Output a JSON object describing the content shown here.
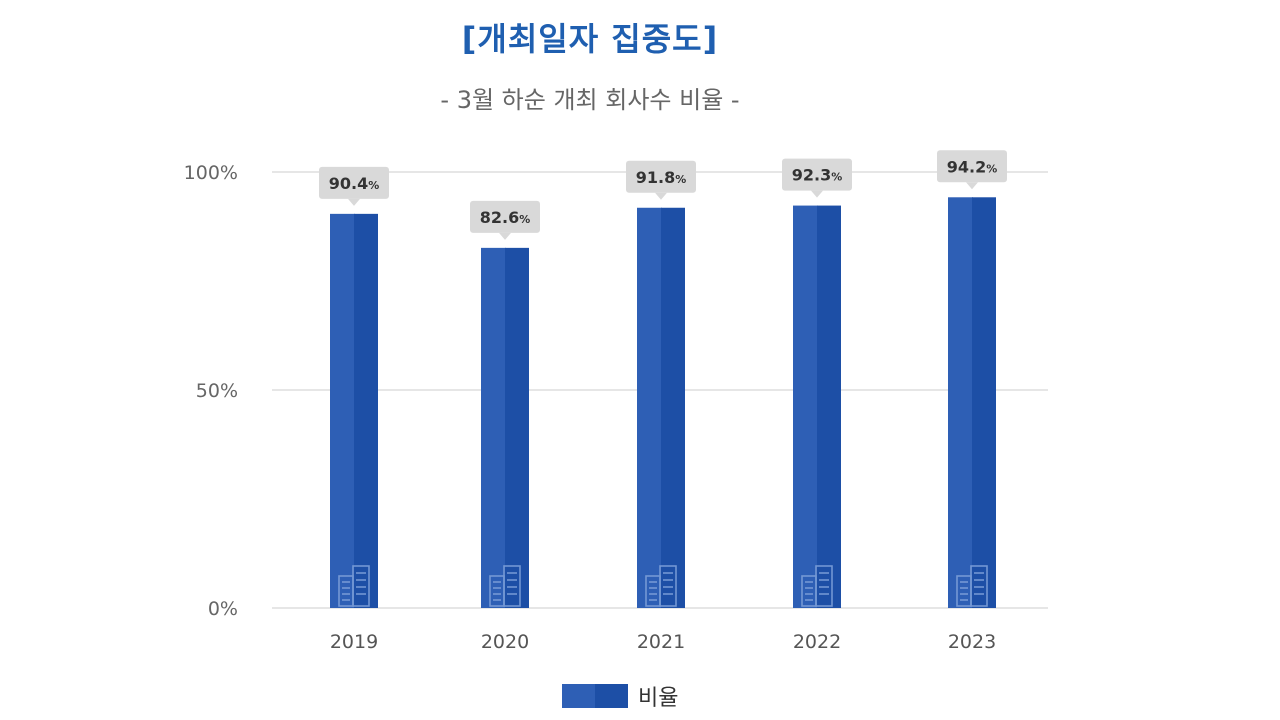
{
  "colors": {
    "title": "#1f5fb0",
    "bar_left": "#2e5fb5",
    "bar_right": "#1d4fa6",
    "grid": "#dddddd",
    "callout": "#d9d9d9"
  },
  "chart_data": {
    "type": "bar",
    "title": "[개최일자 집중도]",
    "subtitle": "- 3월 하순 개최 회사수 비율 -",
    "categories": [
      "2019",
      "2020",
      "2021",
      "2022",
      "2023"
    ],
    "series": [
      {
        "name": "비율",
        "values": [
          90.4,
          82.6,
          91.8,
          92.3,
          94.2
        ],
        "labels": [
          "90.4%",
          "82.6%",
          "91.8%",
          "92.3%",
          "94.2%"
        ]
      }
    ],
    "y_ticks": [
      {
        "value": 0,
        "label": "0%"
      },
      {
        "value": 50,
        "label": "50%"
      },
      {
        "value": 100,
        "label": "100%"
      }
    ],
    "ylim": [
      0,
      100
    ],
    "grid": true,
    "legend_position": "bottom-center",
    "bar_icon": "building-icon"
  }
}
